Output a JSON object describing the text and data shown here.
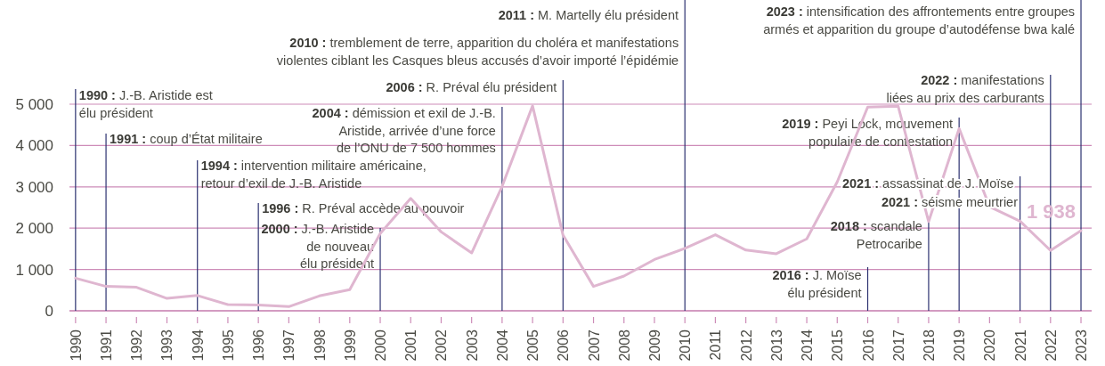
{
  "chart_data": {
    "type": "line",
    "x": [
      1990,
      1991,
      1992,
      1993,
      1994,
      1995,
      1996,
      1997,
      1998,
      1999,
      2000,
      2001,
      2002,
      2003,
      2004,
      2005,
      2006,
      2007,
      2008,
      2009,
      2010,
      2011,
      2012,
      2013,
      2014,
      2015,
      2016,
      2017,
      2018,
      2019,
      2020,
      2021,
      2022,
      2023
    ],
    "series": [
      {
        "color": "#dfb6d0",
        "values": [
          790,
          590,
          570,
          300,
          370,
          150,
          140,
          100,
          360,
          510,
          1870,
          2720,
          1910,
          1400,
          3010,
          4960,
          1830,
          590,
          840,
          1240,
          1510,
          1840,
          1470,
          1380,
          1740,
          3120,
          4930,
          4950,
          2160,
          4410,
          2520,
          2170,
          1460,
          1938
        ],
        "value_labels": [
          null,
          null,
          null,
          null,
          null,
          null,
          null,
          null,
          null,
          null,
          null,
          null,
          null,
          null,
          null,
          null,
          null,
          null,
          null,
          null,
          null,
          null,
          null,
          null,
          null,
          null,
          null,
          null,
          null,
          null,
          null,
          null,
          null,
          "1 938"
        ]
      }
    ],
    "xlim": [
      1989.8,
      2023.35
    ],
    "xticks": [
      1990,
      1991,
      1992,
      1993,
      1994,
      1995,
      1996,
      1997,
      1998,
      1999,
      2000,
      2001,
      2002,
      2003,
      2004,
      2005,
      2006,
      2007,
      2008,
      2009,
      2010,
      2011,
      2012,
      2013,
      2014,
      2015,
      2016,
      2017,
      2018,
      2019,
      2020,
      2021,
      2022,
      2023
    ],
    "ylim": [
      0,
      5000
    ],
    "yticks": [
      0,
      {
        "value": 1000,
        "label": "1 000"
      },
      {
        "value": 2000,
        "label": "2 000"
      },
      {
        "value": 3000,
        "label": "3 000"
      },
      {
        "value": 4000,
        "label": "4 000"
      },
      {
        "value": 5000,
        "label": "5 000"
      }
    ],
    "grid": "y",
    "ref_lines": [
      {
        "axis": "x",
        "value": 1990,
        "label": "1990 : J.-B. Aristide est élu président",
        "color": "#2b3170"
      },
      {
        "axis": "x",
        "value": 1991,
        "label": "1991 : coup d’État militaire",
        "color": "#2b3170"
      },
      {
        "axis": "x",
        "value": 1994,
        "label": "1994 : intervention militaire américaine, retour d’exil de J.-B. Aristide",
        "color": "#2b3170"
      },
      {
        "axis": "x",
        "value": 1996,
        "label": "1996 : R. Préval accède au pouvoir",
        "color": "#2b3170"
      },
      {
        "axis": "x",
        "value": 2000,
        "label": "2000 : J.-B. Aristide de nouveau élu président",
        "color": "#2b3170"
      },
      {
        "axis": "x",
        "value": 2004,
        "label": "2004 : démission et exil de J.-B. Aristide, arrivée d’une force de l’ONU de 7 500 hommes",
        "color": "#2b3170"
      },
      {
        "axis": "x",
        "value": 2006,
        "label": "2006 : R. Préval élu président",
        "color": "#2b3170"
      },
      {
        "axis": "x",
        "value": 2010,
        "label": "2010 : tremblement de terre, apparition du choléra et manifestations violentes ciblant les Casques bleus accusés d’avoir importé l’épidémie",
        "color": "#2b3170"
      },
      {
        "axis": "x",
        "value": 2016,
        "label": "2016 : J. Moïse élu président",
        "color": "#2b3170"
      },
      {
        "axis": "x",
        "value": 2018,
        "label": "2018 : scandale Petrocaribe",
        "color": "#2b3170"
      },
      {
        "axis": "x",
        "value": 2019,
        "label": "2019 : Peyi Lock, mouvement populaire de contestation",
        "color": "#2b3170"
      },
      {
        "axis": "x",
        "value": 2021,
        "label": "2021 : assassinat de J. Moïse",
        "color": "#2b3170"
      },
      {
        "axis": "x",
        "value": 2022,
        "label": "2022 : manifestations liées au prix des carburants",
        "color": "#2b3170"
      },
      {
        "axis": "x",
        "value": 2023,
        "label": "2023 : intensification des affrontements entre groupes armés et apparition du groupe d’autodéfense bwa kalé",
        "color": "#2b3170"
      }
    ],
    "annotations": [
      "2011 : M. Martelly élu président",
      "2021 : séisme meurtrier"
    ]
  }
}
